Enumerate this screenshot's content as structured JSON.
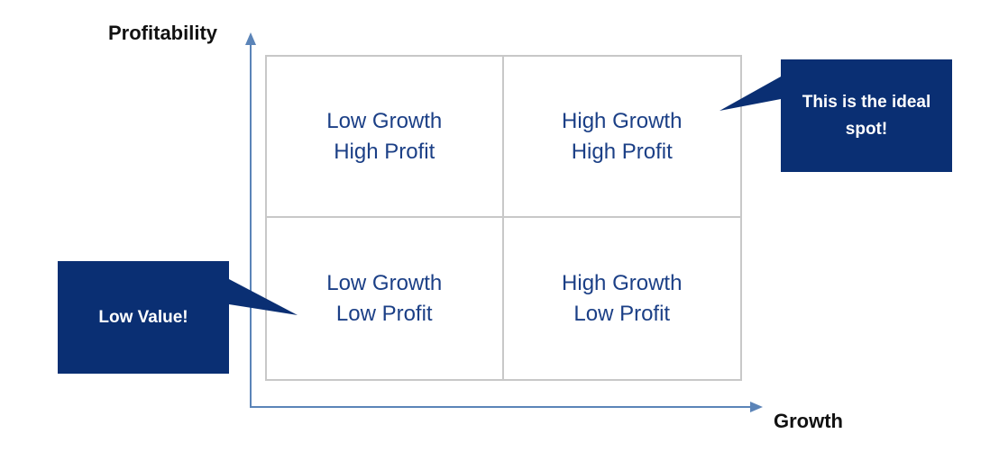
{
  "axes": {
    "y_label": "Profitability",
    "x_label": "Growth"
  },
  "quadrants": {
    "top_left": {
      "line1": "Low Growth",
      "line2": "High Profit"
    },
    "top_right": {
      "line1": "High Growth",
      "line2": "High Profit"
    },
    "bottom_left": {
      "line1": "Low Growth",
      "line2": "Low Profit"
    },
    "bottom_right": {
      "line1": "High Growth",
      "line2": "Low Profit"
    }
  },
  "callouts": {
    "ideal": "This is the ideal spot!",
    "low_value": "Low Value!"
  },
  "colors": {
    "callout_fill": "#0a2f73",
    "quadrant_text": "#1b3f86",
    "axis": "#5b84b8",
    "grid_border": "#c8c8c8"
  }
}
